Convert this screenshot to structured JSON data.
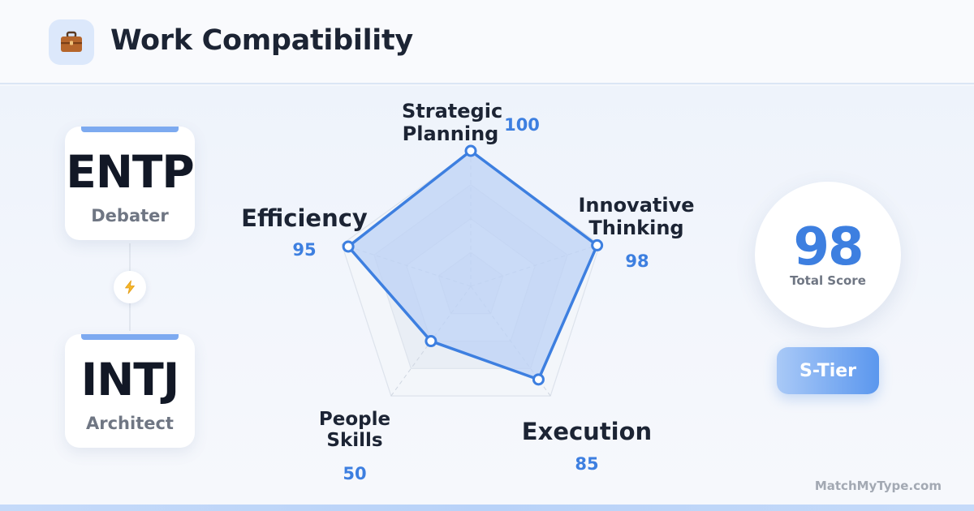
{
  "header": {
    "title": "Work Compatibility",
    "icon": "briefcase-icon"
  },
  "types": [
    {
      "code": "ENTP",
      "name": "Debater"
    },
    {
      "code": "INTJ",
      "name": "Architect"
    }
  ],
  "connector_icon": "lightning-icon",
  "chart_data": {
    "type": "radar",
    "max": 100,
    "axes": [
      {
        "label": "Strategic Planning",
        "lines": [
          "Strategic",
          "Planning"
        ],
        "value": 100
      },
      {
        "label": "Innovative Thinking",
        "lines": [
          "Innovative",
          "Thinking"
        ],
        "value": 98
      },
      {
        "label": "Execution",
        "lines": [
          "Execution"
        ],
        "value": 85
      },
      {
        "label": "People Skills",
        "lines": [
          "People",
          "Skills"
        ],
        "value": 50
      },
      {
        "label": "Efficiency",
        "lines": [
          "Efficiency"
        ],
        "value": 95
      }
    ],
    "grid_levels": 4,
    "colors": {
      "fill": "#bcd2f5",
      "stroke": "#3d7fe0",
      "grid": "#dde3ec"
    }
  },
  "score": {
    "value": "98",
    "label": "Total Score"
  },
  "tier": {
    "label": "S-Tier"
  },
  "footer": {
    "text": "MatchMyType.com"
  }
}
